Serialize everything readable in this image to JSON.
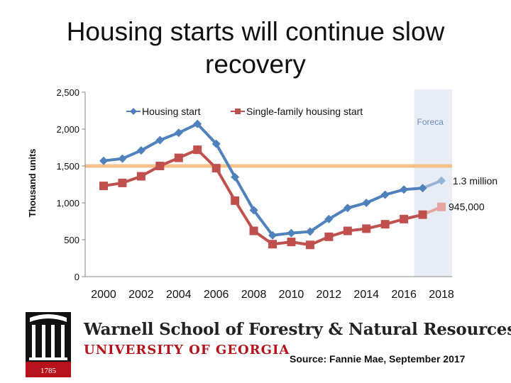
{
  "slide": {
    "title_line1": "Housing starts will continue slow",
    "title_line2": "recovery",
    "source": "Source: Fannie Mae, September 2017",
    "school_name": "Warnell School of Forestry & Natural Resources",
    "university": "UNIVERSITY OF GEORGIA",
    "seal_year": "1785",
    "colors": {
      "univ_red": "#b5121b",
      "seal_black": "#111111"
    }
  },
  "chart_data": {
    "type": "line",
    "title": "",
    "xlabel": "",
    "ylabel": "Thousand units",
    "ylim": [
      0,
      2500
    ],
    "yticks": [
      "0",
      "500",
      "1,000",
      "1,500",
      "2,000",
      "2,500"
    ],
    "xlim": [
      2000,
      2018
    ],
    "xticks": [
      "2000",
      "2002",
      "2004",
      "2006",
      "2008",
      "2010",
      "2012",
      "2014",
      "2016",
      "2018"
    ],
    "forecast_label": "Foreca",
    "forecast_range": [
      2017,
      2018
    ],
    "reference_line": {
      "y": 1500,
      "color": "#f5c08a"
    },
    "legend_position": "top",
    "grid": false,
    "series": [
      {
        "name": "Housing start",
        "color": "#4f81bd",
        "forecast_color": "#95b3d7",
        "marker": "diamond",
        "x": [
          2000,
          2001,
          2002,
          2003,
          2004,
          2005,
          2006,
          2007,
          2008,
          2009,
          2010,
          2011,
          2012,
          2013,
          2014,
          2015,
          2016,
          2017,
          2018
        ],
        "values": [
          1570,
          1600,
          1710,
          1850,
          1950,
          2070,
          1800,
          1350,
          900,
          560,
          590,
          610,
          780,
          930,
          1000,
          1110,
          1180,
          1200,
          1300
        ],
        "end_label": "1.3 million"
      },
      {
        "name": "Single-family housing start",
        "color": "#c0504d",
        "forecast_color": "#e6a5a3",
        "marker": "square",
        "x": [
          2000,
          2001,
          2002,
          2003,
          2004,
          2005,
          2006,
          2007,
          2008,
          2009,
          2010,
          2011,
          2012,
          2013,
          2014,
          2015,
          2016,
          2017,
          2018
        ],
        "values": [
          1230,
          1270,
          1360,
          1500,
          1610,
          1720,
          1470,
          1030,
          620,
          440,
          470,
          430,
          540,
          620,
          650,
          710,
          780,
          840,
          945
        ],
        "end_label": "945,000"
      }
    ]
  }
}
